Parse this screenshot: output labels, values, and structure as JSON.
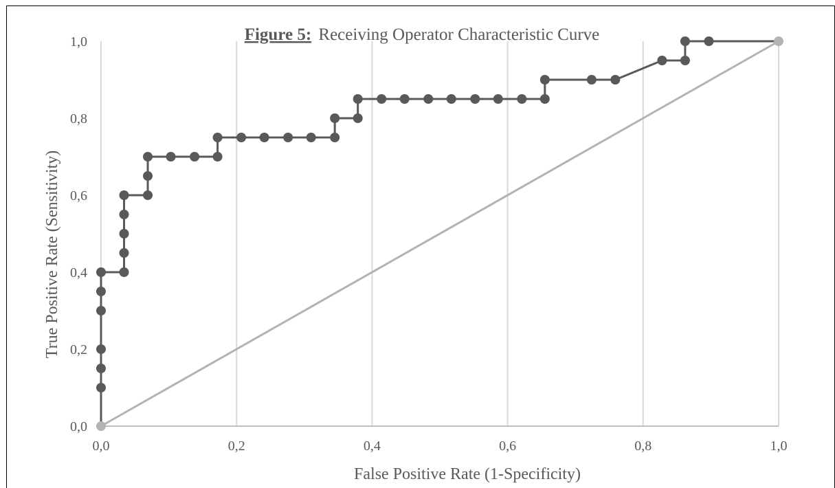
{
  "chart_data": {
    "type": "line",
    "title_prefix": "Figure 5:",
    "title_text": "Receiving Operator Characteristic Curve",
    "xlabel": "False Positive Rate (1-Specificity)",
    "ylabel": "True Positive Rate (Sensitivity)",
    "xlim": [
      0,
      1
    ],
    "ylim": [
      0,
      1
    ],
    "x_ticks": [
      "0,0",
      "0,2",
      "0,4",
      "0,6",
      "0,8",
      "1,0"
    ],
    "y_ticks": [
      "0,0",
      "0,2",
      "0,4",
      "0,6",
      "0,8",
      "1,0"
    ],
    "grid": "vertical",
    "legend": "none",
    "series": [
      {
        "color": "#595959",
        "marker": "circle",
        "points": [
          [
            0,
            0
          ],
          [
            0,
            0.1
          ],
          [
            0,
            0.15
          ],
          [
            0,
            0.2
          ],
          [
            0,
            0.3
          ],
          [
            0,
            0.35
          ],
          [
            0,
            0.4
          ],
          [
            0.034,
            0.4
          ],
          [
            0.034,
            0.45
          ],
          [
            0.034,
            0.5
          ],
          [
            0.034,
            0.55
          ],
          [
            0.034,
            0.6
          ],
          [
            0.069,
            0.6
          ],
          [
            0.069,
            0.65
          ],
          [
            0.069,
            0.7
          ],
          [
            0.103,
            0.7
          ],
          [
            0.138,
            0.7
          ],
          [
            0.172,
            0.7
          ],
          [
            0.172,
            0.75
          ],
          [
            0.207,
            0.75
          ],
          [
            0.241,
            0.75
          ],
          [
            0.276,
            0.75
          ],
          [
            0.31,
            0.75
          ],
          [
            0.345,
            0.75
          ],
          [
            0.345,
            0.8
          ],
          [
            0.379,
            0.8
          ],
          [
            0.379,
            0.85
          ],
          [
            0.414,
            0.85
          ],
          [
            0.448,
            0.85
          ],
          [
            0.483,
            0.85
          ],
          [
            0.517,
            0.85
          ],
          [
            0.552,
            0.85
          ],
          [
            0.586,
            0.85
          ],
          [
            0.621,
            0.85
          ],
          [
            0.655,
            0.85
          ],
          [
            0.655,
            0.9
          ],
          [
            0.724,
            0.9
          ],
          [
            0.759,
            0.9
          ],
          [
            0.828,
            0.95
          ],
          [
            0.862,
            0.95
          ],
          [
            0.862,
            1.0
          ],
          [
            0.897,
            1.0
          ],
          [
            1.0,
            1.0
          ]
        ]
      },
      {
        "color": "#B3B3B3",
        "marker": "circle-endpoints",
        "points": [
          [
            0,
            0
          ],
          [
            1,
            1
          ]
        ]
      }
    ]
  }
}
